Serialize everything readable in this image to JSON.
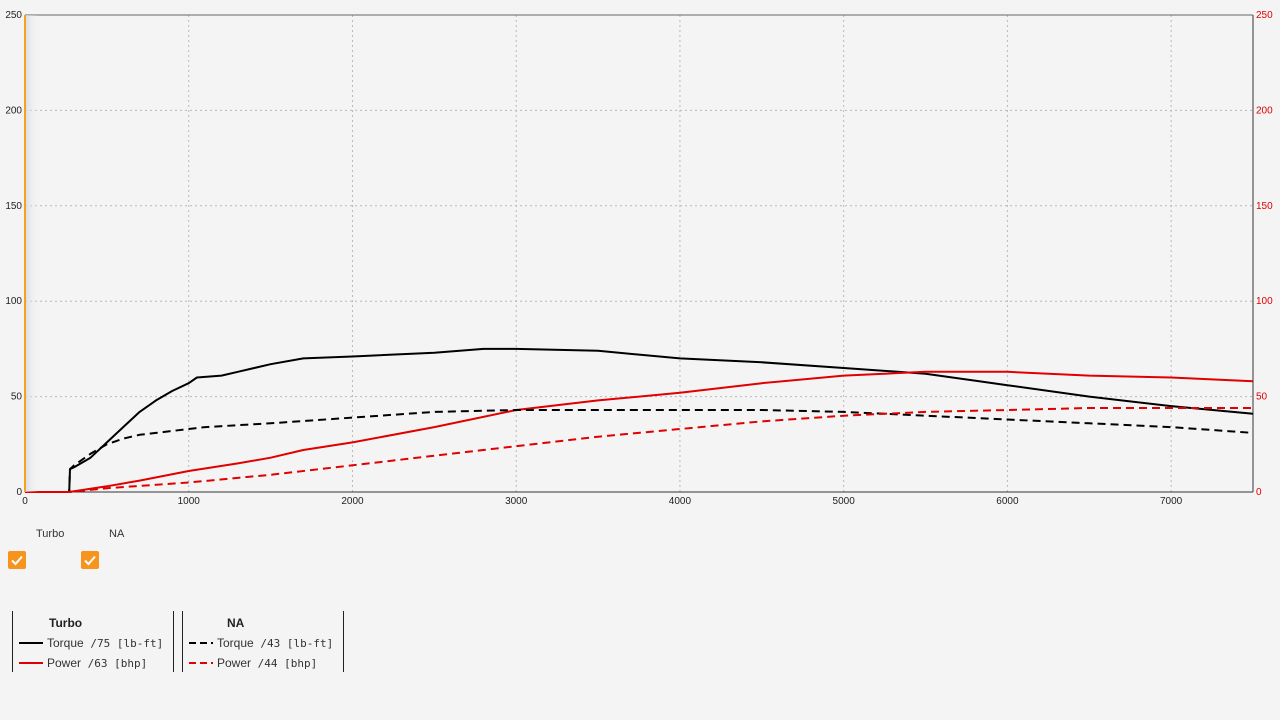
{
  "chart_data": {
    "type": "line",
    "x_range": [
      0,
      7500
    ],
    "ylim_left": [
      0,
      250
    ],
    "ylim_right": [
      0,
      250
    ],
    "x_ticks": [
      0,
      1000,
      2000,
      3000,
      4000,
      5000,
      6000,
      7000
    ],
    "y_ticks": [
      0,
      50,
      100,
      150,
      200,
      250
    ],
    "grid": true,
    "legend_placement": "bottom-left",
    "series": [
      {
        "name": "Torque",
        "group": "Turbo",
        "unit": "lb-ft",
        "peak": "75",
        "color": "#000000",
        "dash": "solid",
        "points": [
          [
            0,
            0
          ],
          [
            250,
            0
          ],
          [
            270,
            0
          ],
          [
            275,
            12
          ],
          [
            300,
            13
          ],
          [
            400,
            18
          ],
          [
            500,
            26
          ],
          [
            600,
            34
          ],
          [
            700,
            42
          ],
          [
            800,
            48
          ],
          [
            900,
            53
          ],
          [
            1000,
            57
          ],
          [
            1050,
            60
          ],
          [
            1200,
            61
          ],
          [
            1300,
            63
          ],
          [
            1500,
            67
          ],
          [
            1700,
            70
          ],
          [
            2000,
            71
          ],
          [
            2500,
            73
          ],
          [
            2800,
            75
          ],
          [
            3000,
            75
          ],
          [
            3500,
            74
          ],
          [
            4000,
            70
          ],
          [
            4500,
            68
          ],
          [
            5000,
            65
          ],
          [
            5500,
            62
          ],
          [
            6000,
            56
          ],
          [
            6500,
            50
          ],
          [
            7000,
            45
          ],
          [
            7500,
            41
          ]
        ]
      },
      {
        "name": "Power",
        "group": "Turbo",
        "unit": "bhp",
        "peak": "63",
        "color": "#e00000",
        "dash": "solid",
        "points": [
          [
            0,
            0
          ],
          [
            270,
            0
          ],
          [
            500,
            3
          ],
          [
            700,
            6
          ],
          [
            1000,
            11
          ],
          [
            1300,
            15
          ],
          [
            1500,
            18
          ],
          [
            1700,
            22
          ],
          [
            2000,
            26
          ],
          [
            2500,
            34
          ],
          [
            3000,
            43
          ],
          [
            3500,
            48
          ],
          [
            4000,
            52
          ],
          [
            4500,
            57
          ],
          [
            5000,
            61
          ],
          [
            5500,
            63
          ],
          [
            6000,
            63
          ],
          [
            6500,
            61
          ],
          [
            7000,
            60
          ],
          [
            7500,
            58
          ]
        ]
      },
      {
        "name": "Torque",
        "group": "NA",
        "unit": "lb-ft",
        "peak": "43",
        "color": "#000000",
        "dash": "dashed",
        "points": [
          [
            0,
            0
          ],
          [
            250,
            0
          ],
          [
            270,
            0
          ],
          [
            275,
            12
          ],
          [
            300,
            14
          ],
          [
            400,
            20
          ],
          [
            500,
            25
          ],
          [
            600,
            28
          ],
          [
            700,
            30
          ],
          [
            800,
            31
          ],
          [
            1000,
            33
          ],
          [
            1100,
            34
          ],
          [
            1300,
            35
          ],
          [
            1500,
            36
          ],
          [
            2000,
            39
          ],
          [
            2500,
            42
          ],
          [
            3000,
            43
          ],
          [
            3500,
            43
          ],
          [
            4000,
            43
          ],
          [
            4500,
            43
          ],
          [
            5000,
            42
          ],
          [
            5500,
            40
          ],
          [
            6000,
            38
          ],
          [
            6500,
            36
          ],
          [
            7000,
            34
          ],
          [
            7500,
            31
          ]
        ]
      },
      {
        "name": "Power",
        "group": "NA",
        "unit": "bhp",
        "peak": "44",
        "color": "#e00000",
        "dash": "dashed",
        "points": [
          [
            0,
            0
          ],
          [
            270,
            0
          ],
          [
            500,
            2
          ],
          [
            1000,
            5
          ],
          [
            1500,
            9
          ],
          [
            2000,
            14
          ],
          [
            2500,
            19
          ],
          [
            3000,
            24
          ],
          [
            3500,
            29
          ],
          [
            4000,
            33
          ],
          [
            4500,
            37
          ],
          [
            5000,
            40
          ],
          [
            5500,
            42
          ],
          [
            6000,
            43
          ],
          [
            6500,
            44
          ],
          [
            7000,
            44
          ],
          [
            7500,
            44
          ]
        ]
      }
    ]
  },
  "toggles": [
    {
      "label": "Turbo",
      "checked": true,
      "color": "#f7941d"
    },
    {
      "label": "NA",
      "checked": true,
      "color": "#f7941d"
    }
  ],
  "legend": [
    {
      "title": "Turbo",
      "rows": [
        {
          "name": "Torque",
          "value": "/75",
          "unit": "[lb-ft]"
        },
        {
          "name": "Power",
          "value": "/63",
          "unit": "[bhp]"
        }
      ]
    },
    {
      "title": "NA",
      "rows": [
        {
          "name": "Torque",
          "value": "/43",
          "unit": "[lb-ft]"
        },
        {
          "name": "Power",
          "value": "/44",
          "unit": "[bhp]"
        }
      ]
    }
  ]
}
